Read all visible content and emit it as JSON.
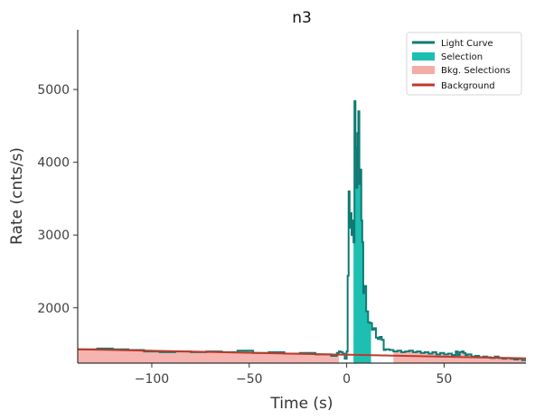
{
  "chart_data": {
    "type": "line",
    "title": "n3",
    "xlabel": "Time (s)",
    "ylabel": "Rate (cnts/s)",
    "xlim": [
      -138,
      92
    ],
    "ylim": [
      1240,
      5820
    ],
    "x_ticks": [
      -100,
      -50,
      0,
      50
    ],
    "x_tick_labels": [
      "−100",
      "−50",
      "0",
      "50"
    ],
    "y_ticks": [
      2000,
      3000,
      4000,
      5000
    ],
    "y_tick_labels": [
      "2000",
      "3000",
      "4000",
      "5000"
    ],
    "grid": false,
    "legend": {
      "placement": "top-right",
      "entries": [
        "Light Curve",
        "Selection",
        "Bkg. Selections",
        "Background"
      ]
    },
    "colors": {
      "light_curve": "#0f7a73",
      "selection": "#1dbfb0",
      "bkg_selection": "#f4aca6",
      "background": "#c0392b",
      "axis": "#333333"
    },
    "selection": {
      "name": "Selection",
      "range": [
        3.5,
        12.5
      ]
    },
    "bkg_selections": {
      "name": "Bkg. Selections",
      "ranges": [
        [
          -138,
          -4
        ],
        [
          24,
          92
        ]
      ]
    },
    "background": {
      "name": "Background",
      "x": [
        -138,
        92
      ],
      "y": [
        1430,
        1305
      ]
    },
    "series": [
      {
        "name": "Light Curve",
        "style": "step",
        "x": [
          -138,
          -128,
          -120,
          -112,
          -104,
          -96,
          -88,
          -80,
          -72,
          -64,
          -56,
          -48,
          -40,
          -32,
          -24,
          -16,
          -8,
          -5,
          -4,
          -3,
          -2,
          -1,
          0,
          0.5,
          1,
          1.5,
          2,
          2.5,
          3,
          3.5,
          4,
          4.5,
          5,
          5.5,
          6,
          6.5,
          7,
          7.5,
          8,
          8.5,
          9,
          10,
          11,
          12,
          13,
          14,
          15,
          16,
          17,
          18,
          19,
          20,
          22,
          24,
          26,
          28,
          30,
          32,
          34,
          36,
          38,
          40,
          42,
          44,
          46,
          48,
          50,
          52,
          54,
          56,
          57,
          58,
          59,
          60,
          61,
          62,
          64,
          66,
          68,
          70,
          72,
          74,
          76,
          78,
          80,
          82,
          84,
          86,
          88,
          90
        ],
        "y": [
          1430,
          1440,
          1430,
          1420,
          1400,
          1390,
          1400,
          1390,
          1400,
          1390,
          1410,
          1380,
          1390,
          1370,
          1380,
          1360,
          1340,
          1380,
          1400,
          1390,
          1370,
          1300,
          1400,
          2440,
          3600,
          3100,
          3300,
          3000,
          3200,
          2900,
          4840,
          4200,
          3650,
          4400,
          4700,
          3700,
          3900,
          3200,
          2900,
          2200,
          2300,
          1950,
          1800,
          1790,
          1700,
          1720,
          1590,
          1570,
          1600,
          1560,
          1420,
          1430,
          1420,
          1400,
          1410,
          1390,
          1400,
          1410,
          1390,
          1400,
          1380,
          1390,
          1370,
          1390,
          1360,
          1380,
          1360,
          1370,
          1350,
          1400,
          1350,
          1390,
          1400,
          1380,
          1350,
          1360,
          1330,
          1340,
          1320,
          1330,
          1320,
          1310,
          1330,
          1310,
          1300,
          1310,
          1300,
          1290,
          1300,
          1280
        ]
      }
    ]
  }
}
